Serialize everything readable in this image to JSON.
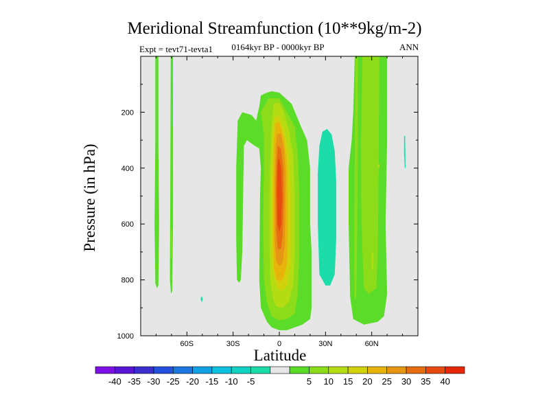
{
  "chart_data": {
    "type": "contour",
    "title": "Meridional Streamfunction (10**9kg/m-2)",
    "subtitle": "0164kyr BP - 0000kyr BP",
    "left_label": "Expt = tevt71-tevta1",
    "right_label": "ANN",
    "xlabel": "Latitude",
    "ylabel": "Pressure (in hPa)",
    "xlim": [
      -90,
      90
    ],
    "ylim": [
      1000,
      0
    ],
    "x_ticks": [
      {
        "value": -60,
        "label": "60S"
      },
      {
        "value": -30,
        "label": "30S"
      },
      {
        "value": 0,
        "label": "0"
      },
      {
        "value": 30,
        "label": "30N"
      },
      {
        "value": 60,
        "label": "60N"
      }
    ],
    "y_ticks": [
      {
        "value": 200,
        "label": "200"
      },
      {
        "value": 400,
        "label": "400"
      },
      {
        "value": 600,
        "label": "600"
      },
      {
        "value": 800,
        "label": "800"
      },
      {
        "value": 1000,
        "label": "1000"
      }
    ],
    "background_color": "#e6e6e6",
    "colorbar": {
      "labels": [
        "-40",
        "-35",
        "-30",
        "-25",
        "-20",
        "-15",
        "-10",
        "-5",
        "5",
        "10",
        "15",
        "20",
        "25",
        "30",
        "35",
        "40"
      ],
      "colors": [
        "#7d10e6",
        "#5a14d6",
        "#3a2ecc",
        "#2350dc",
        "#1c78e0",
        "#14a0e6",
        "#10c0e0",
        "#10d2c0",
        "#1cdcaa",
        "#e6e6e6",
        "#5adc28",
        "#8cdc1a",
        "#b4dc12",
        "#d2d20c",
        "#e6b40a",
        "#e69614",
        "#e66e10",
        "#e64a0c",
        "#e62808"
      ]
    },
    "regions": [
      {
        "level": 5,
        "label": "high-latitude southern band",
        "points": [
          [
            -80.5,
            0
          ],
          [
            -78.5,
            0
          ],
          [
            -78.5,
            320
          ],
          [
            -78,
            600
          ],
          [
            -78.5,
            820
          ],
          [
            -79.5,
            830
          ],
          [
            -80.5,
            810
          ],
          [
            -81,
            600
          ],
          [
            -80.5,
            300
          ]
        ]
      },
      {
        "level": 5,
        "label": "southern narrow band",
        "points": [
          [
            -70.5,
            0
          ],
          [
            -69,
            0
          ],
          [
            -69,
            300
          ],
          [
            -69,
            600
          ],
          [
            -69.5,
            840
          ],
          [
            -70.3,
            850
          ],
          [
            -71,
            800
          ],
          [
            -70.8,
            500
          ]
        ]
      },
      {
        "level": -5,
        "label": "tiny southern patch",
        "points": [
          [
            -50.8,
            860
          ],
          [
            -50,
            862
          ],
          [
            -49.7,
            870
          ],
          [
            -50.3,
            880
          ],
          [
            -51,
            870
          ]
        ]
      },
      {
        "level": -5,
        "label": "tiny northern patch",
        "points": [
          [
            81,
            285
          ],
          [
            81.7,
            285
          ],
          [
            82,
            400
          ],
          [
            81.5,
            400
          ],
          [
            81,
            350
          ]
        ]
      },
      {
        "level": 5,
        "label": "main cell outer",
        "points": [
          [
            -27.5,
            800
          ],
          [
            -28,
            650
          ],
          [
            -28,
            400
          ],
          [
            -27,
            230
          ],
          [
            -24,
            200
          ],
          [
            -18,
            210
          ],
          [
            -15,
            230
          ],
          [
            -13,
            180
          ],
          [
            -12,
            140
          ],
          [
            -8,
            130
          ],
          [
            -5,
            125
          ],
          [
            0,
            130
          ],
          [
            8,
            170
          ],
          [
            14,
            250
          ],
          [
            18,
            300
          ],
          [
            20,
            400
          ],
          [
            20,
            600
          ],
          [
            21,
            700
          ],
          [
            21,
            900
          ],
          [
            20,
            940
          ],
          [
            15,
            960
          ],
          [
            10,
            970
          ],
          [
            5,
            980
          ],
          [
            0,
            980
          ],
          [
            -5,
            970
          ],
          [
            -8,
            950
          ],
          [
            -12,
            900
          ],
          [
            -13,
            800
          ],
          [
            -12.5,
            500
          ],
          [
            -12,
            400
          ],
          [
            -13,
            330
          ],
          [
            -16,
            320
          ],
          [
            -21,
            300
          ],
          [
            -23,
            320
          ],
          [
            -23.5,
            500
          ],
          [
            -24,
            700
          ],
          [
            -25,
            800
          ],
          [
            -26,
            810
          ]
        ]
      },
      {
        "level": 10,
        "label": "main cell level 10",
        "points": [
          [
            -12,
            200
          ],
          [
            -7,
            150
          ],
          [
            0,
            150
          ],
          [
            5,
            200
          ],
          [
            10,
            250
          ],
          [
            12,
            350
          ],
          [
            13,
            500
          ],
          [
            13,
            700
          ],
          [
            12,
            850
          ],
          [
            10,
            920
          ],
          [
            5,
            940
          ],
          [
            0,
            945
          ],
          [
            -5,
            930
          ],
          [
            -8,
            880
          ],
          [
            -10,
            800
          ],
          [
            -10.5,
            600
          ],
          [
            -10,
            400
          ],
          [
            -10,
            280
          ]
        ]
      },
      {
        "level": 15,
        "label": "main cell level 15",
        "points": [
          [
            -3.5,
            170
          ],
          [
            0,
            165
          ],
          [
            3,
            200
          ],
          [
            6,
            260
          ],
          [
            9,
            350
          ],
          [
            10,
            500
          ],
          [
            10,
            700
          ],
          [
            9,
            820
          ],
          [
            6,
            880
          ],
          [
            2,
            900
          ],
          [
            -2,
            895
          ],
          [
            -4,
            870
          ],
          [
            -6,
            800
          ],
          [
            -6.5,
            600
          ],
          [
            -6,
            400
          ],
          [
            -5,
            250
          ]
        ]
      },
      {
        "level": 20,
        "label": "main cell level 20",
        "points": [
          [
            -3,
            220
          ],
          [
            0,
            210
          ],
          [
            3,
            260
          ],
          [
            6,
            340
          ],
          [
            7.5,
            480
          ],
          [
            7.5,
            650
          ],
          [
            7,
            760
          ],
          [
            5,
            820
          ],
          [
            2,
            840
          ],
          [
            -1,
            830
          ],
          [
            -4,
            780
          ],
          [
            -5,
            700
          ],
          [
            -5,
            500
          ],
          [
            -4.5,
            350
          ],
          [
            -4,
            260
          ]
        ]
      },
      {
        "level": 25,
        "label": "main cell level 25",
        "points": [
          [
            -2.5,
            240
          ],
          [
            0,
            235
          ],
          [
            3,
            290
          ],
          [
            5,
            380
          ],
          [
            5.5,
            500
          ],
          [
            5.5,
            650
          ],
          [
            5,
            740
          ],
          [
            3,
            790
          ],
          [
            1,
            805
          ],
          [
            -1.5,
            800
          ],
          [
            -3.5,
            760
          ],
          [
            -4,
            650
          ],
          [
            -4,
            450
          ],
          [
            -3.5,
            320
          ]
        ]
      },
      {
        "level": 30,
        "label": "main cell level 30",
        "points": [
          [
            -1.5,
            280
          ],
          [
            1,
            275
          ],
          [
            3,
            330
          ],
          [
            4,
            420
          ],
          [
            4,
            560
          ],
          [
            3.5,
            680
          ],
          [
            2,
            740
          ],
          [
            0,
            750
          ],
          [
            -2,
            735
          ],
          [
            -3,
            660
          ],
          [
            -3,
            450
          ],
          [
            -2.5,
            340
          ]
        ]
      },
      {
        "level": 35,
        "label": "main cell level 35",
        "points": [
          [
            -1,
            320
          ],
          [
            1,
            330
          ],
          [
            2.5,
            400
          ],
          [
            2.8,
            520
          ],
          [
            2.2,
            640
          ],
          [
            1,
            690
          ],
          [
            -1,
            690
          ],
          [
            -2,
            620
          ],
          [
            -2.2,
            470
          ],
          [
            -1.8,
            380
          ]
        ]
      },
      {
        "level": 40,
        "label": "main cell core",
        "points": [
          [
            -0.5,
            360
          ],
          [
            1.2,
            400
          ],
          [
            1.8,
            500
          ],
          [
            1.2,
            600
          ],
          [
            0,
            630
          ],
          [
            -1.2,
            600
          ],
          [
            -1.5,
            480
          ],
          [
            -1.2,
            400
          ]
        ]
      },
      {
        "level": -5,
        "label": "northern negative cell",
        "points": [
          [
            28,
            270
          ],
          [
            31,
            260
          ],
          [
            34,
            280
          ],
          [
            36,
            340
          ],
          [
            37,
            450
          ],
          [
            37,
            650
          ],
          [
            36,
            780
          ],
          [
            33,
            820
          ],
          [
            30,
            820
          ],
          [
            26,
            780
          ],
          [
            25,
            600
          ],
          [
            25,
            420
          ],
          [
            26,
            320
          ]
        ]
      },
      {
        "level": 5,
        "label": "northern positive cell",
        "points": [
          [
            49,
            0
          ],
          [
            70,
            0
          ],
          [
            70,
            300
          ],
          [
            69,
            600
          ],
          [
            70,
            850
          ],
          [
            68,
            930
          ],
          [
            64,
            950
          ],
          [
            55,
            960
          ],
          [
            48,
            940
          ],
          [
            46,
            860
          ],
          [
            45,
            600
          ],
          [
            45,
            400
          ],
          [
            47,
            300
          ],
          [
            48,
            200
          ]
        ]
      },
      {
        "level": 10,
        "label": "northern positive core",
        "points": [
          [
            54,
            0
          ],
          [
            65,
            0
          ],
          [
            64.5,
            400
          ],
          [
            64,
            700
          ],
          [
            63,
            830
          ],
          [
            58,
            850
          ],
          [
            55,
            830
          ],
          [
            54,
            700
          ],
          [
            53,
            500
          ],
          [
            53,
            300
          ]
        ]
      },
      {
        "level": 10,
        "label": "northern positive side strip",
        "points": [
          [
            49.5,
            0
          ],
          [
            51,
            0
          ],
          [
            51,
            300
          ],
          [
            50.5,
            700
          ],
          [
            50,
            860
          ],
          [
            48.8,
            870
          ],
          [
            48.7,
            700
          ],
          [
            49,
            300
          ]
        ]
      },
      {
        "level": 15,
        "label": "northern small patch",
        "points": [
          [
            60,
            700
          ],
          [
            61,
            700
          ],
          [
            61,
            760
          ],
          [
            60.2,
            770
          ],
          [
            59.8,
            735
          ]
        ]
      },
      {
        "level": 15,
        "label": "southern tiny streak",
        "points": [
          [
            -70.2,
            620
          ],
          [
            -69.8,
            620
          ],
          [
            -69.8,
            720
          ],
          [
            -70.2,
            720
          ]
        ]
      },
      {
        "level": 15,
        "label": "northern dot",
        "points": [
          [
            64,
            385
          ],
          [
            65,
            385
          ],
          [
            65,
            400
          ],
          [
            64,
            400
          ]
        ]
      }
    ]
  }
}
